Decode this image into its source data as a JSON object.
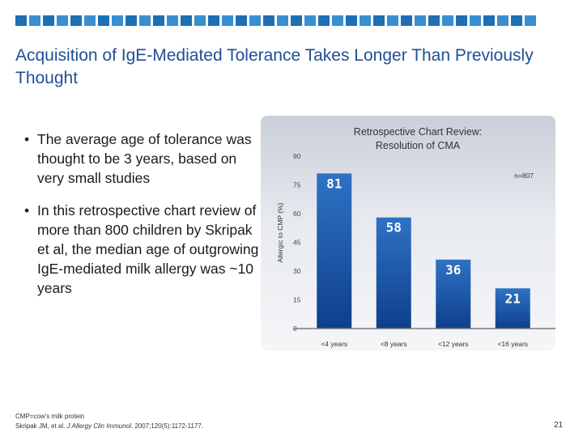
{
  "header": {
    "square_colors": [
      "#1f6fb5",
      "#3a8fd0",
      "#1f6fb5",
      "#3a8fd0",
      "#1f6fb5",
      "#3a8fd0",
      "#1f6fb5",
      "#3a8fd0",
      "#1f6fb5",
      "#3a8fd0",
      "#1f6fb5",
      "#3a8fd0",
      "#1f6fb5",
      "#3a8fd0",
      "#1f6fb5",
      "#3a8fd0",
      "#1f6fb5",
      "#3a8fd0",
      "#1f6fb5",
      "#3a8fd0",
      "#1f6fb5",
      "#3a8fd0",
      "#1f6fb5",
      "#3a8fd0",
      "#1f6fb5",
      "#3a8fd0",
      "#1f6fb5",
      "#3a8fd0",
      "#1f6fb5",
      "#3a8fd0",
      "#1f6fb5",
      "#3a8fd0",
      "#1f6fb5",
      "#3a8fd0",
      "#1f6fb5",
      "#3a8fd0",
      "#1f6fb5",
      "#3a8fd0"
    ]
  },
  "slide": {
    "title": "Acquisition of IgE-Mediated Tolerance Takes Longer Than Previously Thought",
    "bullet_symbol": "•",
    "bullets": [
      "The average age of tolerance was thought to be 3 years, based on very small studies",
      "In this retrospective chart review of more than 800 children by Skripak et al, the median age of outgrowing IgE-mediated milk allergy was ~10 years"
    ],
    "footnote_abbrev": "CMP=cow's milk protein",
    "footnote_ref_authors": "Skripak JM, et al.",
    "footnote_ref_journal": "J Allergy Clin Immunol",
    "footnote_ref_details": ". 2007;120(5):1172-1177.",
    "page_number": "21"
  },
  "colors": {
    "title": "#1f4e96",
    "bar_top": "#2f72c4",
    "bar_bottom": "#0e3f8c",
    "bar_label": "#ffffff"
  },
  "chart_data": {
    "type": "bar",
    "title": "Retrospective Chart Review: Resolution of CMA",
    "title_lines": [
      "Retrospective Chart Review:",
      "Resolution of CMA"
    ],
    "annotation": "n=807",
    "categories": [
      "<4 years",
      "<8 years",
      "<12 years",
      "<16 years"
    ],
    "values": [
      81,
      58,
      36,
      21
    ],
    "value_labels": [
      "81",
      "58",
      "36",
      "21"
    ],
    "ylabel": "Allergic to CMP (%)",
    "xlabel": "",
    "ylim": [
      0,
      90
    ],
    "yticks": [
      0,
      15,
      30,
      45,
      60,
      75,
      90
    ],
    "ytick_labels": [
      "0",
      "15",
      "30",
      "45",
      "60",
      "75",
      "90"
    ]
  }
}
